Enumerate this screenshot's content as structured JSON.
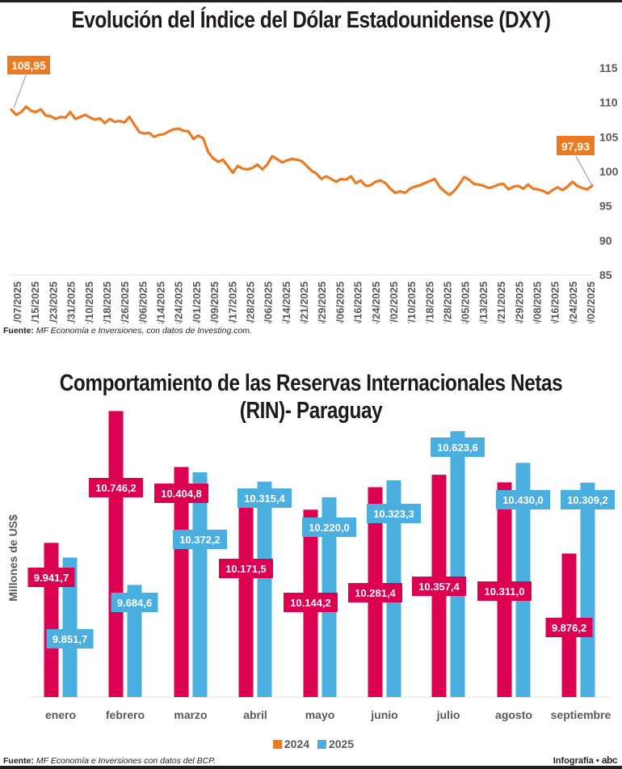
{
  "chart_data": [
    {
      "type": "line",
      "title": "Evolución del Índice del Dólar Estadounidense (DXY)",
      "xlabel": "",
      "ylabel": "",
      "ylim": [
        85,
        115
      ],
      "yticks": [
        "115",
        "110",
        "105",
        "100",
        "95",
        "90",
        "85"
      ],
      "ytick_values": [
        115,
        110,
        105,
        100,
        95,
        90,
        85
      ],
      "y_axis_side": "right",
      "grid": false,
      "color": "#ec7a22",
      "xtick_labels": [
        "01/07/2025",
        "01/15/2025",
        "01/23/2025",
        "01/31/2025",
        "02/10/2025",
        "02/18/2025",
        "02/26/2025",
        "03/06/2025",
        "03/14/2025",
        "03/24/2025",
        "04/01/2025",
        "04/09/2025",
        "04/17/2025",
        "04/28/2025",
        "05/06/2025",
        "05/14/2025",
        "05/21/2025",
        "05/29/2025",
        "06/06/2025",
        "06/16/2025",
        "06/24/2025",
        "07/02/2025",
        "07/10/2025",
        "07/18/2025",
        "07/28/2025",
        "08/05/2025",
        "08/13/2025",
        "08/21/2025",
        "08/29/2025",
        "09/08/2025",
        "09/16/2025",
        "09/24/2025",
        "10/02/2025"
      ],
      "series": [
        {
          "name": "DXY",
          "values": [
            108.95,
            108.2,
            108.6,
            109.4,
            108.8,
            108.6,
            109.0,
            108.1,
            108.0,
            107.6,
            107.9,
            107.8,
            108.6,
            107.6,
            107.9,
            108.2,
            107.8,
            107.5,
            107.7,
            107.0,
            107.6,
            107.2,
            107.3,
            107.1,
            107.9,
            106.8,
            105.7,
            105.5,
            105.6,
            105.0,
            105.3,
            105.4,
            105.8,
            106.1,
            106.2,
            105.9,
            105.8,
            104.7,
            105.2,
            104.8,
            102.8,
            101.9,
            101.4,
            101.7,
            100.8,
            99.8,
            100.8,
            100.4,
            100.3,
            100.5,
            101.0,
            100.3,
            101.0,
            102.2,
            101.8,
            101.3,
            101.6,
            101.8,
            101.7,
            101.5,
            100.8,
            100.1,
            99.7,
            98.9,
            99.3,
            98.9,
            98.5,
            98.9,
            98.8,
            99.3,
            98.3,
            98.7,
            97.9,
            98.0,
            98.5,
            98.7,
            98.3,
            97.5,
            96.9,
            97.1,
            96.9,
            97.5,
            97.8,
            98.0,
            98.3,
            98.6,
            98.9,
            97.8,
            97.1,
            96.6,
            97.2,
            98.1,
            99.2,
            98.8,
            98.2,
            98.1,
            97.9,
            97.6,
            97.8,
            98.1,
            98.2,
            97.4,
            97.8,
            97.9,
            97.5,
            98.1,
            97.5,
            97.4,
            97.2,
            96.8,
            97.3,
            97.7,
            97.3,
            97.8,
            98.5,
            97.9,
            97.6,
            97.4,
            97.93
          ],
          "last_value_label": "97,93",
          "first_value_label": "108,95"
        }
      ]
    },
    {
      "type": "bar",
      "title": "Comportamiento de las Reservas Internacionales Netas (RIN)- Paraguay",
      "title_line1": "Comportamiento de las Reservas Internacionales Netas",
      "title_line2": "(RIN)- Paraguay",
      "xlabel": "",
      "ylabel": "Millones de US$",
      "ylim": [
        9000,
        10800
      ],
      "grid": false,
      "legend_position": "bottom-center",
      "categories": [
        "enero",
        "febrero",
        "marzo",
        "abril",
        "mayo",
        "junio",
        "julio",
        "agosto",
        "septiembre"
      ],
      "series": [
        {
          "name": "2024",
          "color": "#dc0050",
          "legend_color": "#ec7a22",
          "values": [
            9941.7,
            10746.2,
            10404.8,
            10171.5,
            10144.2,
            10281.4,
            10357.4,
            10311.0,
            9876.2
          ],
          "labels": [
            "9.941,7",
            "10.746,2",
            "10.404,8",
            "10.171,5",
            "10.144,2",
            "10.281,4",
            "10.357,4",
            "10.311,0",
            "9.876,2"
          ]
        },
        {
          "name": "2025",
          "color": "#4aaee0",
          "legend_color": "#4aaee0",
          "values": [
            9851.7,
            9684.6,
            10372.2,
            10315.4,
            10220.0,
            10323.3,
            10623.6,
            10430.0,
            10309.2
          ],
          "labels": [
            "9.851,7",
            "9.684,6",
            "10.372,2",
            "10.315,4",
            "10.220,0",
            "10.323,3",
            "10.623,6",
            "10.430,0",
            "10.309,2"
          ]
        }
      ]
    }
  ],
  "sources": {
    "dxy_label": "Fuente:",
    "dxy_text": "MF Economía e Inversiones, con datos de Investing.com.",
    "rin_label": "Fuente:",
    "rin_text": "MF Economía e Inversiones con datos del BCP."
  },
  "legend": {
    "item_2024": "2024",
    "item_2025": "2025"
  },
  "credit": {
    "label": "Infografía •",
    "logo": "abc",
    "logo_icon": "abc-logo-icon"
  }
}
